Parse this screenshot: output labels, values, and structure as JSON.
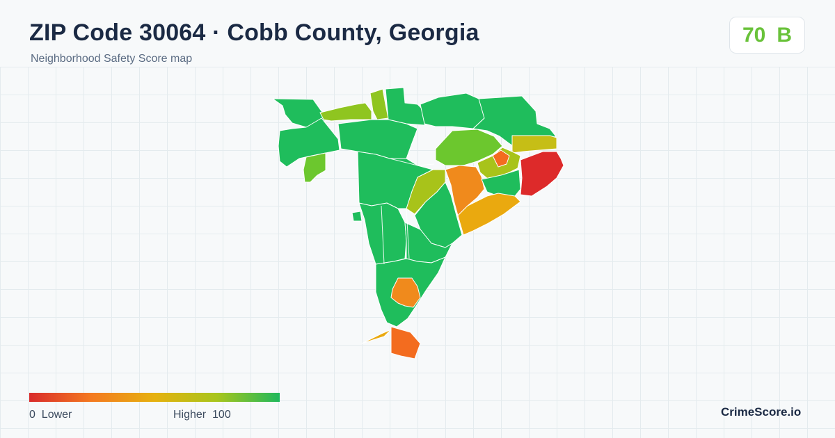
{
  "header": {
    "title": "ZIP Code 30064 · Cobb County, Georgia",
    "subtitle": "Neighborhood Safety Score map"
  },
  "score_badge": {
    "score": "70",
    "grade": "B",
    "color": "#69c23a"
  },
  "legend": {
    "min_label": "0",
    "low_label": "Lower",
    "high_label": "Higher",
    "max_label": "100",
    "gradient": [
      "#d92b2b",
      "#f47a20",
      "#e6b10f",
      "#a8c51c",
      "#1fb85c"
    ]
  },
  "brand": "CrimeScore.io",
  "colors": {
    "green": "#1fbd5c",
    "light_green": "#6cc72e",
    "yellow_green": "#a8c31a",
    "yellow": "#c6be16",
    "amber": "#eaa90f",
    "orange": "#f08a1c",
    "dark_orange": "#f36c1f",
    "red": "#dd2a2a"
  }
}
